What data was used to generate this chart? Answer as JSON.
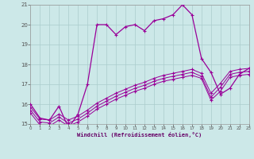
{
  "xlabel": "Windchill (Refroidissement éolien,°C)",
  "background_color": "#cce8e8",
  "grid_color": "#aacccc",
  "line_color": "#990099",
  "xlim": [
    0,
    23
  ],
  "ylim": [
    15,
    21
  ],
  "yticks": [
    15,
    16,
    17,
    18,
    19,
    20,
    21
  ],
  "xticks": [
    0,
    1,
    2,
    3,
    4,
    5,
    6,
    7,
    8,
    9,
    10,
    11,
    12,
    13,
    14,
    15,
    16,
    17,
    18,
    19,
    20,
    21,
    22,
    23
  ],
  "series": [
    {
      "x": [
        0,
        1,
        2,
        3,
        4,
        5,
        6,
        7,
        8,
        9,
        10,
        11,
        12,
        13,
        14,
        15,
        16,
        17,
        18,
        19,
        20,
        21,
        22,
        23
      ],
      "y": [
        16.0,
        15.3,
        15.2,
        15.9,
        14.8,
        15.5,
        17.0,
        20.0,
        20.0,
        19.5,
        19.9,
        20.0,
        19.7,
        20.2,
        20.3,
        20.5,
        21.0,
        20.5,
        18.3,
        17.6,
        16.5,
        16.8,
        17.5,
        17.8
      ]
    },
    {
      "x": [
        0,
        1,
        2,
        3,
        4,
        5,
        6,
        7,
        8,
        9,
        10,
        11,
        12,
        13,
        14,
        15,
        16,
        17,
        18,
        19,
        20,
        21,
        22,
        23
      ],
      "y": [
        15.85,
        15.25,
        15.2,
        15.5,
        15.2,
        15.4,
        15.7,
        16.05,
        16.3,
        16.55,
        16.75,
        16.95,
        17.1,
        17.3,
        17.45,
        17.55,
        17.65,
        17.75,
        17.55,
        16.55,
        17.05,
        17.65,
        17.75,
        17.8
      ]
    },
    {
      "x": [
        0,
        1,
        2,
        3,
        4,
        5,
        6,
        7,
        8,
        9,
        10,
        11,
        12,
        13,
        14,
        15,
        16,
        17,
        18,
        19,
        20,
        21,
        22,
        23
      ],
      "y": [
        15.7,
        15.1,
        15.05,
        15.35,
        15.05,
        15.25,
        15.55,
        15.9,
        16.15,
        16.4,
        16.6,
        16.8,
        16.95,
        17.15,
        17.3,
        17.4,
        17.5,
        17.6,
        17.4,
        16.35,
        16.85,
        17.5,
        17.6,
        17.65
      ]
    },
    {
      "x": [
        0,
        1,
        2,
        3,
        4,
        5,
        6,
        7,
        8,
        9,
        10,
        11,
        12,
        13,
        14,
        15,
        16,
        17,
        18,
        19,
        20,
        21,
        22,
        23
      ],
      "y": [
        15.55,
        14.95,
        14.9,
        15.2,
        14.9,
        15.1,
        15.4,
        15.75,
        16.0,
        16.25,
        16.45,
        16.65,
        16.8,
        17.0,
        17.15,
        17.25,
        17.35,
        17.45,
        17.3,
        16.2,
        16.65,
        17.35,
        17.45,
        17.5
      ]
    }
  ]
}
